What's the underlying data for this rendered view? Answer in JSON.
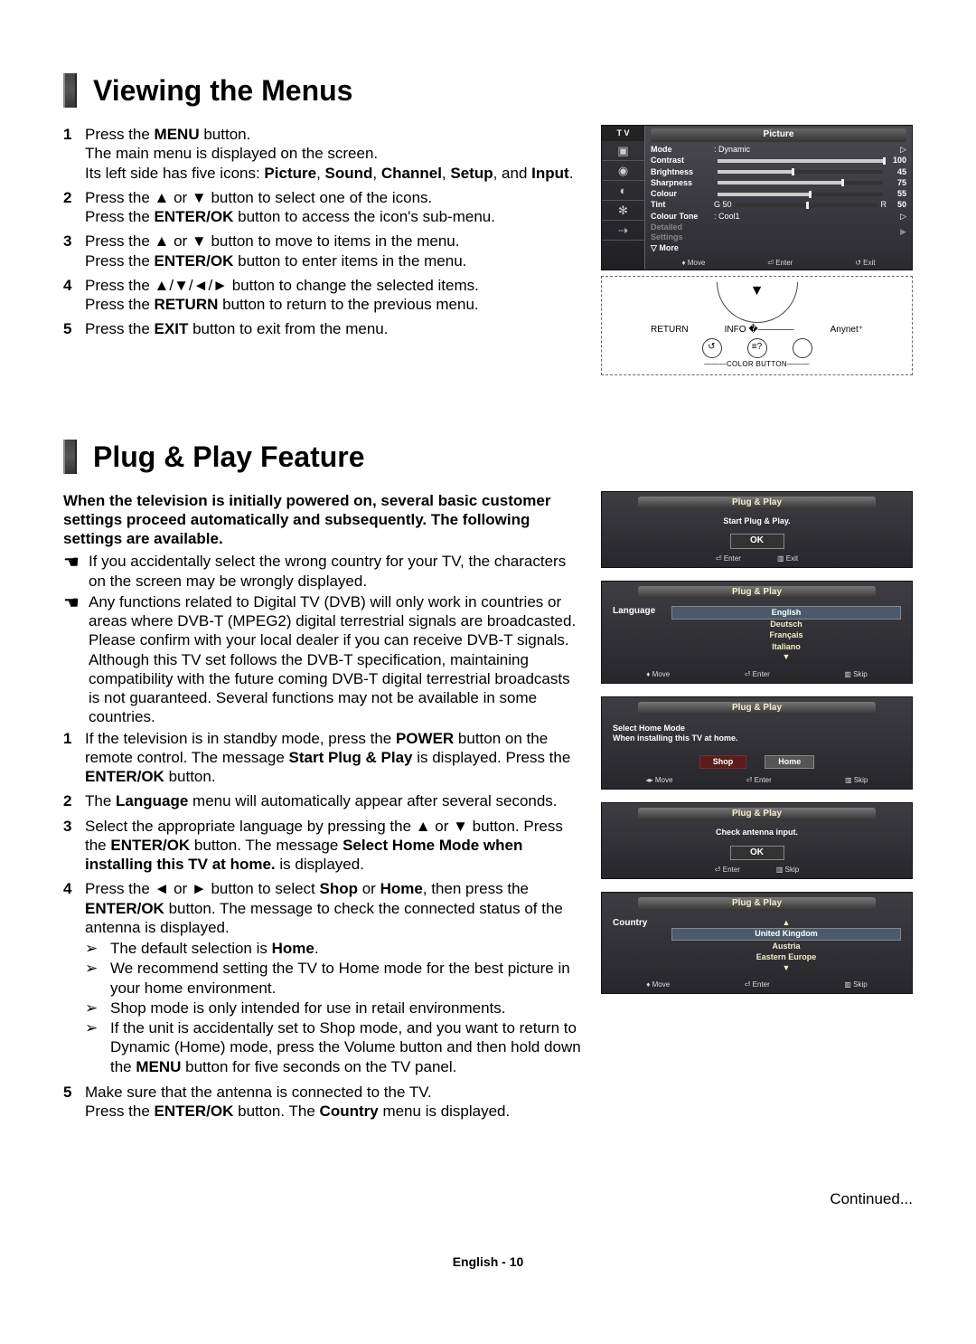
{
  "page": {
    "footer": "English - 10",
    "continued": "Continued..."
  },
  "section1": {
    "title": "Viewing the Menus",
    "steps": [
      {
        "n": "1",
        "html": "Press the <b>MENU</b> button.<br>The main menu is displayed on the screen.<br>Its left side has five icons: <b>Picture</b>, <b>Sound</b>, <b>Channel</b>, <b>Setup</b>, and <b>Input</b>."
      },
      {
        "n": "2",
        "html": "Press the ▲ or ▼ button to select one of the icons.<br>Press the <b>ENTER/OK</b> button to access the icon's sub-menu."
      },
      {
        "n": "3",
        "html": "Press the ▲ or ▼ button to move to items in the menu.<br>Press the <b>ENTER/OK</b> button to enter items in the menu."
      },
      {
        "n": "4",
        "html": "Press the ▲/▼/◄/► button to change the selected items.<br>Press the <b>RETURN</b> button to return to the previous menu."
      },
      {
        "n": "5",
        "html": "Press the <b>EXIT</b> button to exit from the menu."
      }
    ],
    "tvmenu": {
      "tvlabel": "T V",
      "header": "Picture",
      "rows": [
        {
          "label": "Mode",
          "value": ": Dynamic",
          "arrow": true
        },
        {
          "label": "Contrast",
          "slider": 100,
          "max": 100
        },
        {
          "label": "Brightness",
          "slider": 45,
          "max": 100
        },
        {
          "label": "Sharpness",
          "slider": 75,
          "max": 100
        },
        {
          "label": "Colour",
          "slider": 55,
          "max": 100
        },
        {
          "label": "Tint",
          "tint": true,
          "g": "G",
          "r": "R",
          "val": 50
        },
        {
          "label": "Colour Tone",
          "value": ": Cool1",
          "arrow": true
        },
        {
          "label": "Detailed Settings",
          "dim": true,
          "arrow": true
        },
        {
          "label": "▽ More",
          "more": true
        }
      ],
      "foot": {
        "move": "Move",
        "enter": "Enter",
        "exit": "Exit"
      }
    },
    "remote": {
      "ret": "RETURN",
      "info": "INFO",
      "anynet": "Anynet⁺",
      "colorbar": "COLOR BUTTON"
    }
  },
  "section2": {
    "title": "Plug & Play Feature",
    "intro": "When the television is initially powered on, several basic customer settings proceed automatically and subsequently. The following settings are available.",
    "notes": [
      "If you accidentally select the wrong country for your TV, the characters on the screen may be wrongly displayed.",
      "Any functions related to Digital TV (DVB) will only work in countries or areas where DVB-T (MPEG2) digital terrestrial signals are broadcasted. Please confirm with your local dealer if you can receive DVB-T signals. Although this TV set follows the DVB-T specification, maintaining compatibility with the future coming DVB-T digital terrestrial broadcasts is not guaranteed. Several functions may not be available in some countries."
    ],
    "steps": [
      {
        "n": "1",
        "html": "If the television is in standby mode, press the <b>POWER</b> button on the remote control. The message <b>Start Plug & Play</b> is displayed. Press the <b>ENTER/OK</b> button."
      },
      {
        "n": "2",
        "html": "The <b>Language</b> menu will automatically appear after several seconds."
      },
      {
        "n": "3",
        "html": "Select the appropriate language by pressing the ▲ or ▼ button. Press the <b>ENTER/OK</b> button. The message <b>Select Home Mode when installing this TV at home.</b> is displayed."
      },
      {
        "n": "4",
        "html": "Press the ◄ or ► button to select <b>Shop</b> or <b>Home</b>, then press the <b>ENTER/OK</b> button. The message to check the connected status of the antenna is displayed.",
        "subs": [
          "The default selection is <b>Home</b>.",
          "We recommend setting the TV to Home mode for the best picture in your home environment.",
          "Shop mode is only intended for use in retail environments.",
          "If the unit is accidentally set to Shop mode, and you want to return to Dynamic (Home) mode, press the Volume button and then hold down the <b>MENU</b> button for five seconds on the TV panel."
        ]
      },
      {
        "n": "5",
        "html": "Make sure that the antenna is connected to the TV.<br>Press the <b>ENTER/OK</b> button. The <b>Country</b> menu is displayed."
      }
    ],
    "osd1": {
      "title": "Plug & Play",
      "msg": "Start Plug & Play.",
      "ok": "OK",
      "foot": {
        "enter": "Enter",
        "exit": "Exit"
      }
    },
    "osd2": {
      "title": "Plug & Play",
      "label": "Language",
      "items": [
        "English",
        "Deutsch",
        "Français",
        "Italiano"
      ],
      "foot": {
        "move": "Move",
        "enter": "Enter",
        "skip": "Skip"
      }
    },
    "osd3": {
      "title": "Plug & Play",
      "msg1": "Select Home Mode",
      "msg2": "When installing this TV at home.",
      "btns": [
        "Shop",
        "Home"
      ],
      "foot": {
        "move": "Move",
        "enter": "Enter",
        "skip": "Skip"
      }
    },
    "osd4": {
      "title": "Plug & Play",
      "msg": "Check antenna input.",
      "ok": "OK",
      "foot": {
        "enter": "Enter",
        "skip": "Skip"
      }
    },
    "osd5": {
      "title": "Plug & Play",
      "label": "Country",
      "items": [
        "United Kingdom",
        "Austria",
        "Eastern Europe"
      ],
      "foot": {
        "move": "Move",
        "enter": "Enter",
        "skip": "Skip"
      }
    }
  }
}
